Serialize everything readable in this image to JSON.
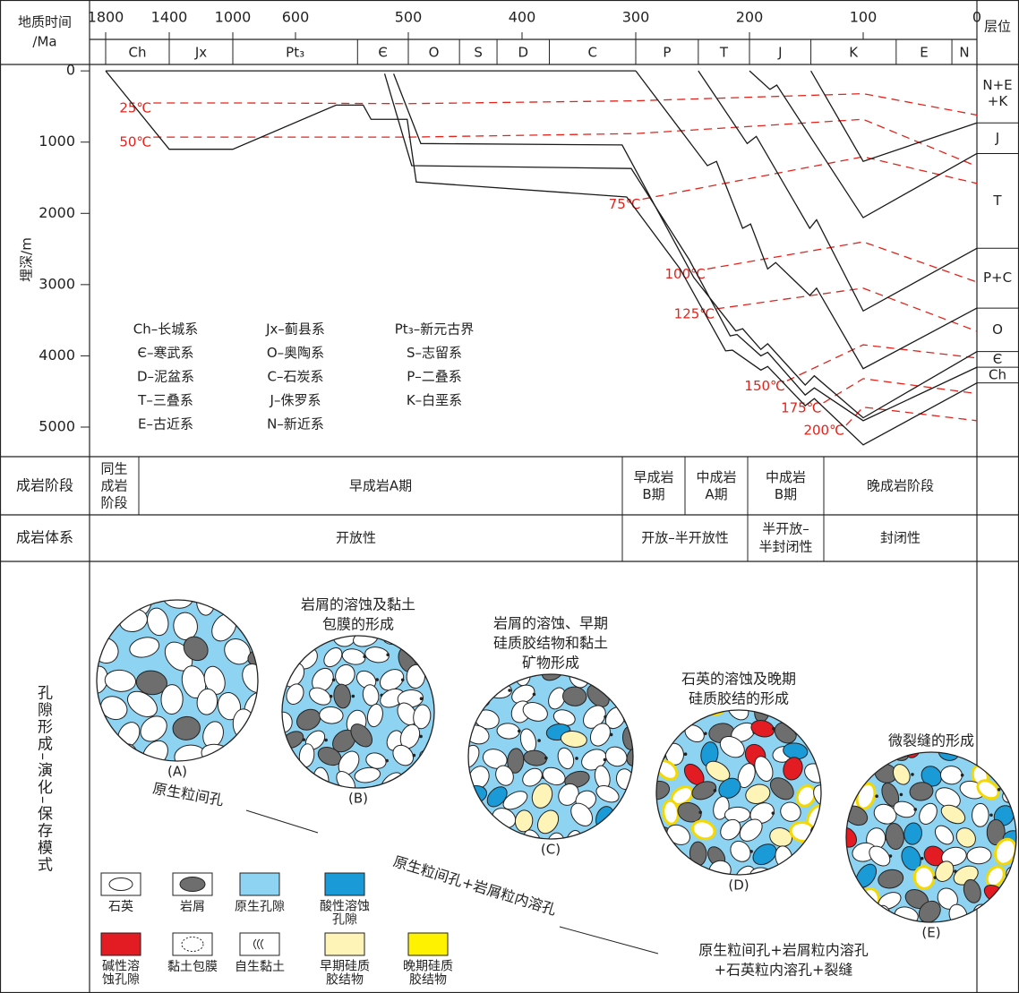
{
  "axes": {
    "time_title": [
      "地质时间",
      "/Ma"
    ],
    "time_ticks": [
      1800,
      1400,
      1000,
      600,
      500,
      400,
      300,
      200,
      100,
      0
    ],
    "time_lim": [
      1800,
      0
    ],
    "depth_title": "埋深/m",
    "depth_ticks": [
      0,
      1000,
      2000,
      3000,
      4000,
      5000
    ],
    "depth_lim": [
      -90,
      5415
    ],
    "formation_title": "层位"
  },
  "strata": {
    "names": [
      "Ch",
      "Jx",
      "Pt₃",
      "Є",
      "O",
      "S",
      "D",
      "C",
      "P",
      "T",
      "J",
      "K",
      "E",
      "N"
    ],
    "boundaries": [
      1800,
      1400,
      1000,
      545,
      500,
      455,
      422,
      376,
      300,
      245,
      200,
      146,
      71,
      22,
      0
    ]
  },
  "legend": [
    "Ch–长城系",
    "Є–寒武系",
    "D–泥盆系",
    "T–三叠系",
    "E–古近系",
    "Jx–蓟县系",
    "O–奥陶系",
    "C–石炭系",
    "J–侏罗系",
    "N–新近系",
    "Pt₃–新元古界",
    "S–志留系",
    "P–二叠系",
    "K–白垩系"
  ],
  "curve_color": "#1a1a1a",
  "burial_curves": [
    {
      "age": [
        1800,
        300
      ],
      "depth": [
        0,
        0
      ]
    },
    {
      "age": [
        146,
        100,
        0
      ],
      "depth": [
        0,
        1270,
        730
      ]
    },
    {
      "age": [
        200,
        182,
        176,
        100,
        0
      ],
      "depth": [
        0,
        260,
        200,
        2060,
        1160
      ]
    },
    {
      "age": [
        245,
        202,
        194,
        147,
        141,
        100,
        0
      ],
      "depth": [
        0,
        1020,
        920,
        2210,
        2090,
        3370,
        2490
      ]
    },
    {
      "age": [
        300,
        237,
        229,
        206,
        199,
        184,
        177,
        147,
        141,
        100,
        0
      ],
      "depth": [
        0,
        1330,
        1270,
        2210,
        2150,
        2780,
        2690,
        3150,
        3050,
        4180,
        3330
      ]
    },
    {
      "age": [
        513,
        489,
        312,
        249,
        212,
        206,
        190,
        184,
        151,
        143,
        100,
        0
      ],
      "depth": [
        40,
        1020,
        1040,
        2900,
        3650,
        3620,
        3910,
        3830,
        4410,
        4280,
        4870,
        3940
      ]
    },
    {
      "age": [
        521,
        497,
        304,
        253,
        217,
        211,
        190,
        184,
        151,
        143,
        100,
        0
      ],
      "depth": [
        40,
        1330,
        1370,
        2650,
        3720,
        3700,
        4000,
        3950,
        4550,
        4450,
        4910,
        4160
      ]
    },
    {
      "age": [
        1800,
        1400,
        1000,
        564,
        540,
        533,
        501,
        493,
        308,
        261,
        221,
        215,
        190,
        184,
        151,
        143,
        100,
        0
      ],
      "depth": [
        0,
        1100,
        1100,
        480,
        480,
        680,
        680,
        1560,
        1770,
        2780,
        3930,
        3920,
        4200,
        4150,
        4700,
        4600,
        5250,
        4380
      ]
    }
  ],
  "isotherm_color": "#e3231b",
  "isotherms": [
    {
      "label": "25℃",
      "age": [
        1500,
        1000,
        500,
        300,
        100,
        0
      ],
      "depth": [
        450,
        450,
        460,
        420,
        320,
        620
      ]
    },
    {
      "label": "50℃",
      "age": [
        1500,
        500,
        300,
        100,
        0
      ],
      "depth": [
        930,
        930,
        880,
        680,
        1340
      ]
    },
    {
      "label": "75℃",
      "age": [
        294,
        100,
        0
      ],
      "depth": [
        1800,
        1205,
        1580
      ]
    },
    {
      "label": "100℃",
      "age": [
        237,
        100,
        0
      ],
      "depth": [
        2780,
        2400,
        2965
      ]
    },
    {
      "label": "125℃",
      "age": [
        229,
        100,
        0
      ],
      "depth": [
        3340,
        3050,
        3655
      ]
    },
    {
      "label": "150℃",
      "age": [
        167,
        100,
        0
      ],
      "depth": [
        4350,
        3845,
        4030
      ]
    },
    {
      "label": "175℃",
      "age": [
        135,
        100,
        0
      ],
      "depth": [
        4660,
        4320,
        4530
      ]
    },
    {
      "label": "200℃",
      "age": [
        115,
        100,
        0
      ],
      "depth": [
        4975,
        4720,
        4910
      ]
    }
  ],
  "formations": [
    [
      "N+E",
      "+K"
    ],
    [
      "J"
    ],
    [
      "T"
    ],
    [
      "P+C"
    ],
    [
      "O"
    ],
    [
      "Є"
    ],
    [
      "Ch"
    ]
  ],
  "diagenesis": {
    "stage_title": "成岩阶段",
    "stages": [
      [
        "同生",
        "成岩",
        "阶段"
      ],
      [
        "早成岩A期"
      ],
      [
        "早成岩",
        "B期"
      ],
      [
        "中成岩",
        "A期"
      ],
      [
        "中成岩",
        "B期"
      ],
      [
        "晚成岩阶段"
      ]
    ],
    "system_title": "成岩体系",
    "systems": [
      [
        "开放性"
      ],
      [
        "开放–半开放性"
      ],
      [
        "半开放–",
        "半封闭性"
      ],
      [
        "封闭性"
      ]
    ]
  },
  "pore_model": {
    "title": "孔隙形成–演化–保存模式",
    "stages": [
      {
        "label": "(A)"
      },
      {
        "label": "(B)",
        "caption": [
          "岩屑的溶蚀及黏土",
          "包膜的形成"
        ]
      },
      {
        "label": "(C)",
        "caption": [
          "岩屑的溶蚀、早期",
          "硅质胶结物和黏土",
          "矿物形成"
        ]
      },
      {
        "label": "(D)",
        "caption": [
          "石英的溶蚀及晚期",
          "硅质胶结的形成"
        ]
      },
      {
        "label": "(E)",
        "caption": [
          "微裂缝的形成"
        ]
      }
    ],
    "paths": [
      [
        "原生粒间孔"
      ],
      [
        "原生粒间孔+岩屑粒内溶孔"
      ],
      [
        "原生粒间孔+岩屑粒内溶孔",
        "+石英粒内溶孔+裂缝"
      ]
    ],
    "legend": [
      {
        "label": [
          "石英"
        ]
      },
      {
        "label": [
          "岩屑"
        ]
      },
      {
        "label": [
          "原生孔隙"
        ],
        "color": "#8ed3f2"
      },
      {
        "label": [
          "酸性溶蚀",
          "孔隙"
        ],
        "color": "#1a9ad6"
      },
      {
        "label": [
          "碱性溶",
          "蚀孔隙"
        ],
        "color": "#e31b23"
      },
      {
        "label": [
          "黏土包膜"
        ]
      },
      {
        "label": [
          "自生黏土"
        ]
      },
      {
        "label": [
          "早期硅质",
          "胶结物"
        ],
        "color": "#fff4b8"
      },
      {
        "label": [
          "晚期硅质",
          "胶结物"
        ],
        "color": "#fff200"
      }
    ]
  }
}
